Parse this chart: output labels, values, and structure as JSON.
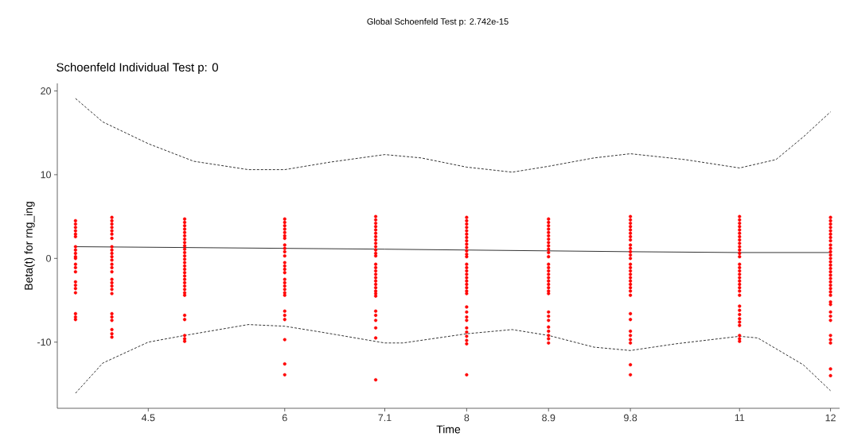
{
  "chart_data": {
    "type": "scatter",
    "title": "Global Schoenfeld Test p: 2.742e-15",
    "subtitle": "Schoenfeld Individual Test p: 0",
    "xlabel": "Time",
    "ylabel": "Beta(t) for rng_ing",
    "xlim": [
      3.5,
      12.1
    ],
    "ylim": [
      -17.9,
      20.9
    ],
    "xticks": [
      4.5,
      6,
      7.1,
      8,
      8.9,
      9.8,
      11,
      12
    ],
    "yticks": [
      -10,
      0,
      10,
      20
    ],
    "series": [
      {
        "type": "scatter",
        "color": "#ff0000",
        "marker": "circle",
        "x": [
          3.7,
          3.7,
          3.7,
          3.7,
          3.7,
          3.7,
          3.7,
          3.7,
          3.7,
          3.7,
          3.7,
          3.7,
          3.7,
          3.7,
          3.7,
          3.7,
          3.7,
          3.7,
          3.7,
          3.7,
          3.7,
          4.1,
          4.1,
          4.1,
          4.1,
          4.1,
          4.1,
          4.1,
          4.1,
          4.1,
          4.1,
          4.1,
          4.1,
          4.1,
          4.1,
          4.1,
          4.1,
          4.1,
          4.1,
          4.1,
          4.1,
          4.1,
          4.1,
          4.1,
          4.1,
          4.1,
          4.1,
          4.9,
          4.9,
          4.9,
          4.9,
          4.9,
          4.9,
          4.9,
          4.9,
          4.9,
          4.9,
          4.9,
          4.9,
          4.9,
          4.9,
          4.9,
          4.9,
          4.9,
          4.9,
          4.9,
          4.9,
          4.9,
          4.9,
          4.9,
          4.9,
          4.9,
          4.9,
          4.9,
          4.9,
          4.9,
          6,
          6,
          6,
          6,
          6,
          6,
          6,
          6,
          6,
          6,
          6,
          6,
          6,
          6,
          6,
          6,
          6,
          6,
          6,
          6,
          6,
          6,
          6,
          6,
          6,
          6,
          6,
          7,
          7,
          7,
          7,
          7,
          7,
          7,
          7,
          7,
          7,
          7,
          7,
          7,
          7,
          7,
          7,
          7,
          7,
          7,
          7,
          7,
          7,
          7,
          7,
          7,
          7,
          7,
          7,
          7,
          7,
          8,
          8,
          8,
          8,
          8,
          8,
          8,
          8,
          8,
          8,
          8,
          8,
          8,
          8,
          8,
          8,
          8,
          8,
          8,
          8,
          8,
          8,
          8,
          8,
          8,
          8,
          8,
          8,
          8,
          8,
          8,
          8,
          8,
          8.9,
          8.9,
          8.9,
          8.9,
          8.9,
          8.9,
          8.9,
          8.9,
          8.9,
          8.9,
          8.9,
          8.9,
          8.9,
          8.9,
          8.9,
          8.9,
          8.9,
          8.9,
          8.9,
          8.9,
          8.9,
          8.9,
          8.9,
          8.9,
          8.9,
          8.9,
          8.9,
          8.9,
          8.9,
          8.9,
          9.8,
          9.8,
          9.8,
          9.8,
          9.8,
          9.8,
          9.8,
          9.8,
          9.8,
          9.8,
          9.8,
          9.8,
          9.8,
          9.8,
          9.8,
          9.8,
          9.8,
          9.8,
          9.8,
          9.8,
          9.8,
          9.8,
          9.8,
          9.8,
          9.8,
          9.8,
          9.8,
          9.8,
          9.8,
          9.8,
          9.8,
          11,
          11,
          11,
          11,
          11,
          11,
          11,
          11,
          11,
          11,
          11,
          11,
          11,
          11,
          11,
          11,
          11,
          11,
          11,
          11,
          11,
          11,
          11,
          11,
          11,
          11,
          11,
          11,
          11,
          11,
          11,
          11,
          12,
          12,
          12,
          12,
          12,
          12,
          12,
          12,
          12,
          12,
          12,
          12,
          12,
          12,
          12,
          12,
          12,
          12,
          12,
          12,
          12,
          12,
          12,
          12,
          12,
          12,
          12,
          12,
          12,
          12,
          12,
          12,
          12,
          12
        ],
        "values": [
          4.5,
          4.1,
          3.7,
          3.3,
          2.9,
          2.6,
          1.4,
          1.0,
          0.6,
          0.2,
          0,
          -0.7,
          -1.1,
          -1.6,
          -2.8,
          -3.2,
          -3.6,
          -4.1,
          -6.6,
          -7.0,
          -7.3,
          4.9,
          4.5,
          4.1,
          3.7,
          3.3,
          2.9,
          2.4,
          1.4,
          1.0,
          0.6,
          0.2,
          -0.2,
          -0.7,
          -1.1,
          -1.6,
          -2.5,
          -2.9,
          -3.3,
          -3.7,
          -4.2,
          -6.6,
          -7.0,
          -7.4,
          -8.5,
          -9.0,
          -9.4,
          4.7,
          4.3,
          3.9,
          3.5,
          3.1,
          2.7,
          2.3,
          1.9,
          1.5,
          1.1,
          0.7,
          0.3,
          -0.1,
          -0.5,
          -0.9,
          -1.3,
          -1.7,
          -2.1,
          -2.5,
          -2.9,
          -3.3,
          -3.7,
          -4.1,
          -4.4,
          -6.8,
          -7.3,
          -9.2,
          -9.6,
          -9.9,
          4.7,
          4.3,
          3.9,
          3.5,
          3.1,
          2.7,
          2.4,
          1.6,
          1.2,
          0.8,
          0.3,
          -0.5,
          -0.9,
          -1.3,
          -1.7,
          -2.5,
          -2.9,
          -3.3,
          -3.7,
          -4.1,
          -4.4,
          -6.3,
          -6.8,
          -7.3,
          -9.7,
          -12.6,
          -13.9,
          5.0,
          4.6,
          4.2,
          3.8,
          3.4,
          3.0,
          2.6,
          2.2,
          1.8,
          1.4,
          1.0,
          0.6,
          0.3,
          -0.7,
          -1.1,
          -1.5,
          -1.9,
          -2.3,
          -2.7,
          -3.1,
          -3.5,
          -3.9,
          -4.2,
          -4.5,
          -6.3,
          -6.8,
          -7.4,
          -8.3,
          -9.5,
          -14.5,
          4.9,
          4.5,
          4.1,
          3.7,
          3.3,
          2.9,
          2.5,
          2.1,
          1.7,
          1.3,
          0.9,
          0.5,
          0.2,
          -0.7,
          -1.1,
          -1.5,
          -1.9,
          -2.3,
          -2.7,
          -3.1,
          -3.5,
          -3.9,
          -4.2,
          -5.8,
          -6.4,
          -7.0,
          -7.4,
          -8.3,
          -8.8,
          -9.3,
          -9.8,
          -10.2,
          -13.9,
          4.7,
          4.3,
          3.9,
          3.5,
          3.1,
          2.7,
          2.3,
          1.9,
          1.5,
          1.1,
          0.7,
          0.2,
          -0.7,
          -1.1,
          -1.5,
          -1.9,
          -2.3,
          -2.7,
          -3.1,
          -3.5,
          -3.9,
          -4.2,
          -6.4,
          -6.9,
          -7.4,
          -8.2,
          -8.7,
          -9.2,
          -9.6,
          -10.1,
          5.0,
          4.6,
          4.2,
          3.8,
          3.4,
          3.0,
          2.6,
          2.2,
          1.6,
          1.2,
          0.8,
          0.4,
          0,
          -0.7,
          -1.1,
          -1.5,
          -1.9,
          -2.3,
          -2.7,
          -3.1,
          -3.5,
          -3.9,
          -4.4,
          -6.6,
          -7.3,
          -8.7,
          -9.2,
          -9.7,
          -10.1,
          -12.7,
          -13.9,
          5.0,
          4.6,
          4.2,
          3.8,
          3.4,
          3.0,
          2.6,
          2.2,
          1.8,
          1.4,
          1.0,
          0.6,
          0.2,
          -0.7,
          -1.1,
          -1.5,
          -1.9,
          -2.3,
          -2.7,
          -3.1,
          -3.5,
          -3.9,
          -4.4,
          -5.7,
          -6.2,
          -6.7,
          -7.2,
          -7.6,
          -8.0,
          -9.2,
          -9.6,
          -9.9,
          4.9,
          4.5,
          4.1,
          3.7,
          3.3,
          2.9,
          2.5,
          2.1,
          1.6,
          1.2,
          0.8,
          0.4,
          0,
          -0.4,
          -0.8,
          -1.2,
          -1.6,
          -2.0,
          -2.4,
          -2.8,
          -3.2,
          -3.6,
          -4.0,
          -4.4,
          -5.2,
          -5.5,
          -6.4,
          -6.9,
          -7.4,
          -9.2,
          -9.7,
          -10.1,
          -13.2,
          -14.0
        ]
      },
      {
        "type": "line",
        "color": "#000000",
        "marker": "none",
        "line_style": "solid",
        "x": [
          3.7,
          4.9,
          6,
          7.1,
          8,
          8.9,
          9.8,
          11,
          12
        ],
        "values": [
          1.4,
          1.3,
          1.2,
          1.1,
          1.0,
          0.9,
          0.8,
          0.7,
          0.7
        ]
      },
      {
        "type": "line",
        "color": "#000000",
        "marker": "none",
        "line_style": "dashed",
        "x": [
          3.7,
          4.0,
          4.5,
          5.0,
          5.6,
          6.0,
          6.5,
          7.1,
          7.5,
          8.0,
          8.5,
          8.9,
          9.4,
          9.8,
          10.4,
          11.0,
          11.4,
          11.7,
          12.0
        ],
        "values": [
          19.1,
          16.3,
          13.7,
          11.6,
          10.6,
          10.6,
          11.5,
          12.4,
          12.0,
          10.9,
          10.3,
          11.0,
          12.0,
          12.5,
          11.8,
          10.8,
          11.8,
          14.5,
          17.5
        ]
      },
      {
        "type": "line",
        "color": "#000000",
        "marker": "none",
        "line_style": "dashed",
        "x": [
          3.7,
          4.0,
          4.5,
          4.9,
          5.6,
          6.0,
          6.4,
          7.1,
          7.3,
          8.0,
          8.5,
          8.9,
          9.4,
          9.8,
          10.3,
          11.0,
          11.2,
          11.7,
          12.0
        ],
        "values": [
          -16.1,
          -12.5,
          -10.0,
          -9.2,
          -7.9,
          -8.1,
          -8.8,
          -10.1,
          -10.1,
          -9.0,
          -8.5,
          -9.2,
          -10.6,
          -11.0,
          -10.2,
          -9.3,
          -9.5,
          -12.7,
          -15.8
        ]
      }
    ]
  }
}
